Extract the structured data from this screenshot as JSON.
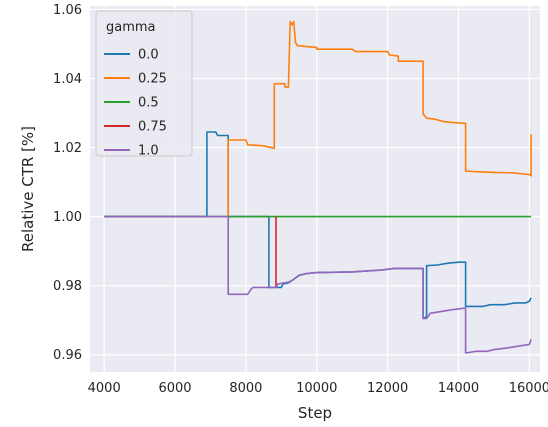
{
  "chart_data": {
    "type": "line",
    "xlabel": "Step",
    "ylabel": "Relative CTR [%]",
    "xlim": [
      3600,
      16300
    ],
    "ylim": [
      0.955,
      1.061
    ],
    "xticks": [
      4000,
      6000,
      8000,
      10000,
      12000,
      14000,
      16000
    ],
    "yticks": [
      0.96,
      0.98,
      1.0,
      1.02,
      1.04,
      1.06
    ],
    "ytick_labels": [
      "0.96",
      "0.98",
      "1.00",
      "1.02",
      "1.04",
      "1.06"
    ],
    "xtick_labels": [
      "4000",
      "6000",
      "8000",
      "10000",
      "12000",
      "14000",
      "16000"
    ],
    "grid": true,
    "background": "#eaeaf2",
    "legend": {
      "title": "gamma",
      "placement": "top-left"
    },
    "series": [
      {
        "name": "0.0",
        "color": "#1f77b4",
        "points": [
          [
            4000,
            1.0
          ],
          [
            6900,
            1.0
          ],
          [
            6900,
            1.0245
          ],
          [
            7150,
            1.0245
          ],
          [
            7200,
            1.0235
          ],
          [
            7500,
            1.0235
          ],
          [
            7500,
            1.0
          ],
          [
            8650,
            1.0
          ],
          [
            8650,
            0.9795
          ],
          [
            9000,
            0.9795
          ],
          [
            9050,
            0.9805
          ],
          [
            9200,
            0.9808
          ],
          [
            9300,
            0.9815
          ],
          [
            9500,
            0.983
          ],
          [
            9700,
            0.9835
          ],
          [
            10000,
            0.9838
          ],
          [
            11000,
            0.984
          ],
          [
            11800,
            0.9845
          ],
          [
            12200,
            0.985
          ],
          [
            13000,
            0.985
          ],
          [
            13000,
            0.9705
          ],
          [
            13100,
            0.971
          ],
          [
            13100,
            0.9858
          ],
          [
            13400,
            0.986
          ],
          [
            13700,
            0.9865
          ],
          [
            14000,
            0.9868
          ],
          [
            14200,
            0.9868
          ],
          [
            14200,
            0.974
          ],
          [
            14700,
            0.974
          ],
          [
            14900,
            0.9745
          ],
          [
            15300,
            0.9745
          ],
          [
            15600,
            0.975
          ],
          [
            15900,
            0.975
          ],
          [
            16000,
            0.9755
          ],
          [
            16050,
            0.9765
          ]
        ]
      },
      {
        "name": "0.25",
        "color": "#ff7f0e",
        "points": [
          [
            7500,
            1.0
          ],
          [
            7500,
            1.0222
          ],
          [
            8000,
            1.0222
          ],
          [
            8050,
            1.0208
          ],
          [
            8500,
            1.0205
          ],
          [
            8800,
            1.0198
          ],
          [
            8800,
            1.0385
          ],
          [
            9100,
            1.0385
          ],
          [
            9100,
            1.0375
          ],
          [
            9200,
            1.0375
          ],
          [
            9250,
            1.0565
          ],
          [
            9300,
            1.0555
          ],
          [
            9350,
            1.0565
          ],
          [
            9400,
            1.0505
          ],
          [
            9450,
            1.0495
          ],
          [
            10000,
            1.049
          ],
          [
            10000,
            1.0485
          ],
          [
            11000,
            1.0485
          ],
          [
            11100,
            1.0478
          ],
          [
            12000,
            1.0478
          ],
          [
            12050,
            1.0468
          ],
          [
            12300,
            1.0465
          ],
          [
            12300,
            1.045
          ],
          [
            13000,
            1.045
          ],
          [
            13000,
            1.0298
          ],
          [
            13100,
            1.0285
          ],
          [
            13300,
            1.0283
          ],
          [
            13600,
            1.0275
          ],
          [
            13900,
            1.0272
          ],
          [
            14200,
            1.027
          ],
          [
            14200,
            1.0132
          ],
          [
            14500,
            1.013
          ],
          [
            15000,
            1.0128
          ],
          [
            15500,
            1.0127
          ],
          [
            16000,
            1.0122
          ],
          [
            16050,
            1.0118
          ],
          [
            16050,
            1.0238
          ]
        ]
      },
      {
        "name": "0.5",
        "color": "#2ca02c",
        "points": [
          [
            4000,
            1.0
          ],
          [
            16050,
            1.0
          ]
        ]
      },
      {
        "name": "0.75",
        "color": "#d62728",
        "points": [
          [
            8850,
            1.0
          ],
          [
            8850,
            0.9795
          ]
        ]
      },
      {
        "name": "1.0",
        "color": "#9467bd",
        "points": [
          [
            4000,
            1.0
          ],
          [
            7500,
            1.0
          ],
          [
            7500,
            0.9775
          ],
          [
            8050,
            0.9775
          ],
          [
            8150,
            0.979
          ],
          [
            8200,
            0.9795
          ],
          [
            8850,
            0.9795
          ],
          [
            8900,
            0.9805
          ],
          [
            9200,
            0.981
          ],
          [
            9300,
            0.9815
          ],
          [
            9500,
            0.983
          ],
          [
            9700,
            0.9835
          ],
          [
            10000,
            0.9838
          ],
          [
            11000,
            0.984
          ],
          [
            11800,
            0.9845
          ],
          [
            12200,
            0.985
          ],
          [
            13000,
            0.985
          ],
          [
            13000,
            0.9705
          ],
          [
            13100,
            0.9705
          ],
          [
            13200,
            0.972
          ],
          [
            13500,
            0.9725
          ],
          [
            13800,
            0.973
          ],
          [
            14200,
            0.9735
          ],
          [
            14200,
            0.9605
          ],
          [
            14500,
            0.961
          ],
          [
            14800,
            0.961
          ],
          [
            15000,
            0.9615
          ],
          [
            15400,
            0.962
          ],
          [
            15700,
            0.9625
          ],
          [
            16000,
            0.963
          ],
          [
            16050,
            0.9645
          ]
        ]
      }
    ]
  }
}
